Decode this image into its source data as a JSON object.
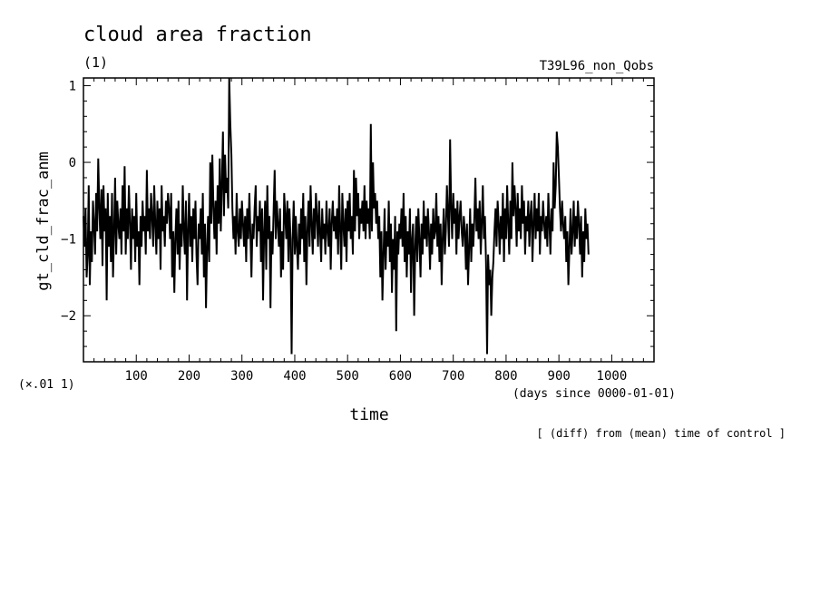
{
  "chart_data": {
    "type": "line",
    "title": "cloud area fraction",
    "units": "(1)",
    "run_label": "T39L96_non_Qobs",
    "xlabel": "time",
    "x_units": "(days since 0000-01-01)",
    "ylabel": "gt_cld_frac_anm",
    "y_scale_note": "(×.01 1)",
    "footnote": "[ (diff) from (mean) time of control ]",
    "xlim": [
      0,
      1080
    ],
    "ylim": [
      -2.6,
      1.1
    ],
    "x_ticks": [
      100,
      200,
      300,
      400,
      500,
      600,
      700,
      800,
      900,
      1000
    ],
    "x_tick_labels": [
      "100",
      "200",
      "300",
      "400",
      "500",
      "600",
      "700",
      "800",
      "900",
      "1000"
    ],
    "y_ticks": [
      1,
      0,
      -1,
      -2
    ],
    "y_tick_labels": [
      "1",
      "0",
      "−1",
      "−2"
    ],
    "grid": false,
    "series": [
      {
        "x_start": 0,
        "x_step": 2,
        "values": [
          -0.7,
          -1.1,
          -0.6,
          -1.5,
          -1.2,
          -0.3,
          -1.6,
          -0.9,
          -1.3,
          -0.5,
          -0.8,
          -1.2,
          -0.4,
          -0.9,
          0.05,
          -0.6,
          -1.0,
          -0.35,
          -1.35,
          -0.3,
          -0.9,
          -0.6,
          -1.8,
          -0.4,
          -1.1,
          -0.7,
          -1.3,
          -0.4,
          -1.5,
          -0.9,
          -0.2,
          -1.2,
          -0.5,
          -0.8,
          -1.0,
          -0.6,
          -1.2,
          -0.3,
          -0.9,
          -0.05,
          -1.2,
          -0.6,
          -1.0,
          -0.3,
          -0.8,
          -1.4,
          -0.6,
          -1.0,
          -0.7,
          -1.3,
          -0.4,
          -1.1,
          -0.9,
          -1.6,
          -0.7,
          -1.1,
          -0.5,
          -0.9,
          -0.7,
          -1.2,
          -0.1,
          -0.9,
          -0.6,
          -1.0,
          -0.4,
          -0.7,
          -1.1,
          -0.3,
          -0.8,
          -1.2,
          -0.5,
          -1.0,
          -0.6,
          -1.4,
          -0.3,
          -0.9,
          -0.7,
          -1.1,
          -0.5,
          -0.8,
          -0.4,
          -0.6,
          -1.0,
          -0.4,
          -1.5,
          -0.9,
          -1.7,
          -1.0,
          -0.6,
          -1.2,
          -0.5,
          -1.4,
          -0.8,
          -1.1,
          -0.3,
          -0.9,
          -1.2,
          -0.5,
          -1.8,
          -0.9,
          -0.4,
          -1.1,
          -0.7,
          -1.3,
          -0.6,
          -1.0,
          -0.5,
          -1.2,
          -1.6,
          -0.8,
          -1.0,
          -0.6,
          -1.2,
          -0.4,
          -1.5,
          -0.8,
          -1.9,
          -1.1,
          -0.7,
          -1.3,
          0.0,
          -0.8,
          0.1,
          -0.6,
          -1.0,
          -0.5,
          -1.2,
          -0.3,
          -0.8,
          0.05,
          -0.9,
          -0.3,
          0.4,
          -0.7,
          0.1,
          -0.4,
          -0.2,
          -0.6,
          1.1,
          0.5,
          0.1,
          -0.6,
          -1.0,
          -0.7,
          -1.2,
          -0.4,
          -0.9,
          -1.1,
          -0.6,
          -1.0,
          -0.5,
          -0.8,
          -1.1,
          -0.7,
          -1.3,
          -0.6,
          -1.0,
          -0.4,
          -0.9,
          -1.5,
          -0.8,
          -1.0,
          -0.6,
          -0.3,
          -1.1,
          -0.7,
          -0.9,
          -0.5,
          -1.3,
          -0.6,
          -1.8,
          -0.9,
          -0.5,
          -1.4,
          -0.3,
          -1.0,
          -0.7,
          -1.9,
          -0.9,
          -1.2,
          -0.6,
          -0.1,
          -1.0,
          -0.5,
          -0.8,
          -1.1,
          -0.6,
          -1.5,
          -0.9,
          -1.4,
          -0.4,
          -0.7,
          -1.0,
          -0.5,
          -1.3,
          -0.6,
          -1.0,
          -2.5,
          -1.0,
          -0.5,
          -1.2,
          -0.7,
          -1.1,
          -1.4,
          -0.8,
          -1.2,
          -0.6,
          -1.0,
          -0.4,
          -1.3,
          -0.7,
          -1.6,
          -0.9,
          -0.5,
          -1.1,
          -0.3,
          -0.8,
          -1.2,
          -0.6,
          -1.0,
          -0.4,
          -0.7,
          -1.1,
          -0.5,
          -0.9,
          -1.3,
          -0.6,
          -1.0,
          -0.8,
          -1.2,
          -0.5,
          -0.9,
          -1.1,
          -0.6,
          -1.4,
          -0.8,
          -0.5,
          -0.9,
          -0.7,
          -1.0,
          -0.6,
          -1.2,
          -0.3,
          -0.9,
          -1.4,
          -0.4,
          -0.8,
          -1.1,
          -0.6,
          -1.3,
          -0.5,
          -0.9,
          -0.4,
          -1.0,
          -0.7,
          -1.2,
          -0.1,
          -0.9,
          -0.2,
          -0.7,
          -0.4,
          -1.0,
          -0.6,
          -0.8,
          -0.5,
          -0.9,
          -0.3,
          -1.0,
          -0.5,
          -0.8,
          -0.6,
          -1.0,
          0.5,
          -0.9,
          0.0,
          -0.6,
          -0.4,
          -0.8,
          -0.5,
          -1.0,
          -0.7,
          -1.5,
          -0.9,
          -1.8,
          -1.2,
          -0.6,
          -1.4,
          -0.9,
          -1.1,
          -0.5,
          -1.3,
          -0.8,
          -1.7,
          -1.0,
          -1.4,
          -0.7,
          -2.2,
          -0.9,
          -1.2,
          -0.8,
          -1.0,
          -0.6,
          -1.1,
          -0.4,
          -1.3,
          -0.7,
          -1.5,
          -0.9,
          -1.2,
          -0.6,
          -1.7,
          -1.0,
          -0.8,
          -2.0,
          -1.1,
          -0.7,
          -1.3,
          -0.6,
          -1.0,
          -1.5,
          -0.8,
          -1.2,
          -0.5,
          -1.0,
          -0.7,
          -1.1,
          -0.6,
          -0.9,
          -1.4,
          -0.8,
          -1.2,
          -0.6,
          -1.0,
          -0.9,
          -0.4,
          -1.1,
          -0.7,
          -1.3,
          -0.8,
          -1.6,
          -1.0,
          -0.6,
          -1.2,
          -0.9,
          -0.3,
          -0.7,
          -1.1,
          0.3,
          -0.6,
          -1.0,
          -0.4,
          -0.8,
          -0.6,
          -1.2,
          -0.5,
          -1.0,
          -0.7,
          -0.5,
          -0.9,
          -1.1,
          -0.7,
          -0.9,
          -1.4,
          -0.8,
          -1.6,
          -1.1,
          -0.6,
          -1.3,
          -0.8,
          -1.1,
          -0.7,
          -0.2,
          -0.9,
          -0.6,
          -1.0,
          -0.5,
          -1.2,
          -0.8,
          -0.3,
          -1.0,
          -0.7,
          -1.3,
          -2.5,
          -1.2,
          -1.6,
          -1.4,
          -2.0,
          -1.5,
          -1.3,
          -0.9,
          -0.6,
          -1.1,
          -0.5,
          -0.8,
          -1.2,
          -0.7,
          -1.0,
          -0.4,
          -1.3,
          -0.6,
          -1.0,
          -0.3,
          -0.8,
          -1.2,
          -0.5,
          -1.0,
          0.0,
          -0.7,
          -0.3,
          -0.6,
          -1.1,
          -0.4,
          -0.9,
          -0.6,
          -1.0,
          -0.3,
          -0.8,
          -0.5,
          -1.2,
          -0.7,
          -0.9,
          -0.5,
          -1.1,
          -0.7,
          -0.5,
          -1.3,
          -0.8,
          -0.4,
          -1.0,
          -0.6,
          -0.9,
          -0.4,
          -1.2,
          -0.7,
          -0.9,
          -0.5,
          -0.8,
          -1.0,
          -0.7,
          -1.1,
          -0.4,
          -0.8,
          -1.2,
          -0.6,
          -0.9,
          0.0,
          -0.6,
          -0.3,
          0.4,
          0.2,
          -0.2,
          -0.6,
          -0.9,
          -0.5,
          -0.8,
          -1.0,
          -0.7,
          -1.3,
          -0.9,
          -1.6,
          -1.1,
          -0.6,
          -1.2,
          -0.9,
          -0.5,
          -1.1,
          -0.7,
          -1.0,
          -0.5,
          -0.8,
          -1.2,
          -0.7,
          -1.5,
          -0.9,
          -1.3,
          -0.6,
          -1.0,
          -0.8,
          -1.2
        ]
      }
    ]
  }
}
